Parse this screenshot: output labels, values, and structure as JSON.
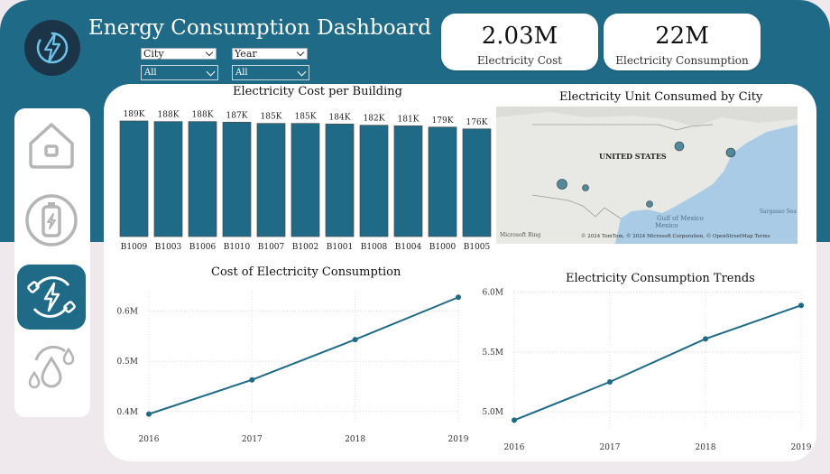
{
  "header": {
    "title": "Energy Consumption Dashboard",
    "logo_icon": "lightning-bolt-icon"
  },
  "filters": {
    "city": {
      "label": "City",
      "selected": "All"
    },
    "year": {
      "label": "Year",
      "selected": "All"
    }
  },
  "kpis": [
    {
      "value": "2.03M",
      "label": "Electricity Cost"
    },
    {
      "value": "22M",
      "label": "Electricity Consumption"
    }
  ],
  "nav": {
    "items": [
      {
        "icon": "home-icon",
        "active": false
      },
      {
        "icon": "battery-icon",
        "active": false
      },
      {
        "icon": "electricity-cycle-icon",
        "active": true
      },
      {
        "icon": "water-drops-icon",
        "active": false
      }
    ]
  },
  "map": {
    "title": "Electricity Unit Consumed by City",
    "country_label": "UNITED STATES",
    "gulf_label": "Gulf of\nMexico",
    "mexico_label": "Mexico",
    "sea_label": "Sargasso Sea",
    "attribution": "© 2024 TomTom, © 2024 Microsoft Corporation, © OpenStreetMap  Terms",
    "bing_label": "Microsoft Bing"
  },
  "colors": {
    "primary": "#1f6a86",
    "navy": "#1c3448",
    "background": "#efe9ed"
  },
  "chart_data": [
    {
      "type": "bar",
      "title": "Electricity Cost per Building",
      "categories": [
        "B1009",
        "B1003",
        "B1006",
        "B1010",
        "B1007",
        "B1002",
        "B1001",
        "B1008",
        "B1004",
        "B1000",
        "B1005"
      ],
      "values": [
        189,
        188,
        188,
        187,
        185,
        185,
        184,
        182,
        181,
        179,
        176
      ],
      "data_labels": [
        "189K",
        "188K",
        "188K",
        "187K",
        "185K",
        "185K",
        "184K",
        "182K",
        "181K",
        "179K",
        "176K"
      ],
      "ylim": [
        0,
        189
      ]
    },
    {
      "type": "line",
      "title": "Cost of Electricity Consumption",
      "x": [
        "2016",
        "2017",
        "2018",
        "2019"
      ],
      "values": [
        0.395,
        0.463,
        0.543,
        0.627
      ],
      "yticks": [
        0.4,
        0.5,
        0.6
      ],
      "ytick_labels": [
        "0.4M",
        "0.5M",
        "0.6M"
      ],
      "ylim": [
        0.38,
        0.64
      ]
    },
    {
      "type": "line",
      "title": "Electricity Consumption Trends",
      "x": [
        "2016",
        "2017",
        "2018",
        "2019"
      ],
      "values": [
        4.93,
        5.25,
        5.61,
        5.89
      ],
      "yticks": [
        5.0,
        5.5,
        6.0
      ],
      "ytick_labels": [
        "5.0M",
        "5.5M",
        "6.0M"
      ],
      "ylim": [
        4.85,
        6.02
      ]
    }
  ]
}
